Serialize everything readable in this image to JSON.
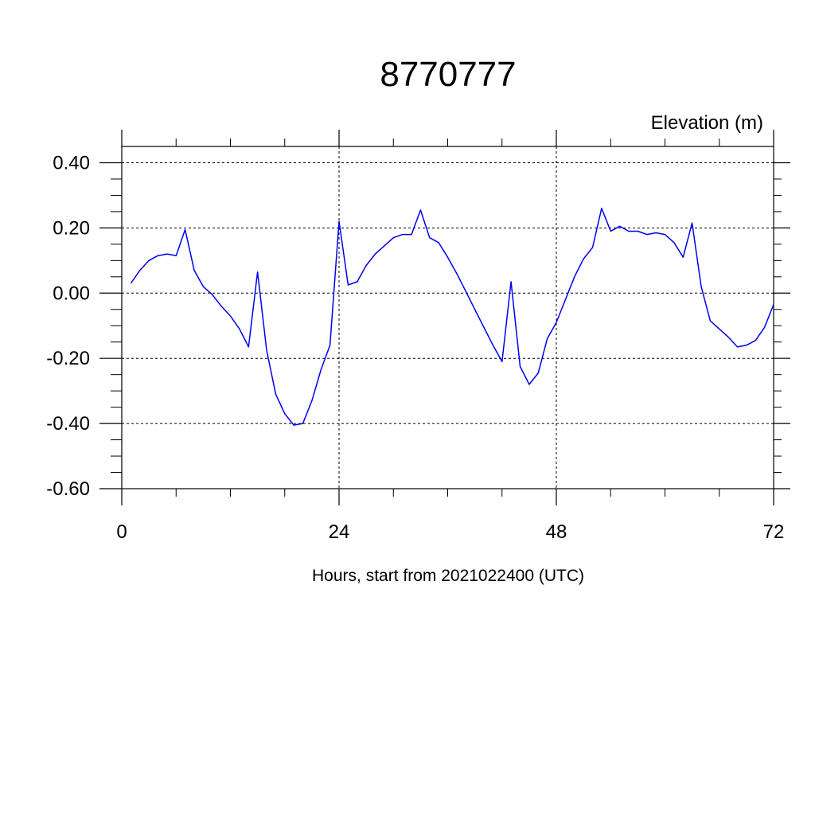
{
  "chart_data": {
    "type": "line",
    "title": "8770777",
    "ylabel": "Elevation (m)",
    "xlabel": "Hours, start from 2021022400 (UTC)",
    "xlim": [
      0,
      72
    ],
    "ylim": [
      -0.6,
      0.45
    ],
    "xticks": [
      0,
      24,
      48,
      72
    ],
    "xtick_labels": [
      "0",
      "24",
      "48",
      "72"
    ],
    "yticks": [
      -0.6,
      -0.4,
      -0.2,
      0.0,
      0.2,
      0.4
    ],
    "ytick_labels": [
      "-0.60",
      "-0.40",
      "-0.20",
      "0.00",
      "0.20",
      "0.40"
    ],
    "grid": true,
    "line_color": "#0000ee",
    "series": [
      {
        "x": [
          1,
          2,
          3,
          4,
          5,
          6,
          7,
          8,
          9,
          10,
          11,
          12,
          13,
          14,
          15,
          16,
          17,
          18,
          19,
          20,
          21,
          22,
          23,
          24,
          25,
          26,
          27,
          28,
          29,
          30,
          31,
          32,
          33,
          34,
          35,
          36,
          37,
          38,
          39,
          40,
          41,
          42,
          43,
          44,
          45,
          46,
          47,
          48,
          49,
          50,
          51,
          52,
          53,
          54,
          55,
          56,
          57,
          58,
          59,
          60,
          61,
          62,
          63,
          64,
          65,
          66,
          67,
          68,
          69,
          70,
          71,
          72
        ],
        "values": [
          0.03,
          0.07,
          0.1,
          0.115,
          0.12,
          0.115,
          0.195,
          0.07,
          0.02,
          -0.005,
          -0.04,
          -0.07,
          -0.11,
          -0.165,
          0.065,
          -0.175,
          -0.31,
          -0.37,
          -0.405,
          -0.4,
          -0.33,
          -0.235,
          -0.16,
          0.22,
          0.025,
          0.035,
          0.085,
          0.12,
          0.145,
          0.17,
          0.18,
          0.18,
          0.255,
          0.17,
          0.155,
          0.11,
          0.06,
          0.005,
          -0.05,
          -0.105,
          -0.16,
          -0.21,
          0.035,
          -0.225,
          -0.28,
          -0.245,
          -0.14,
          -0.09,
          -0.02,
          0.05,
          0.105,
          0.14,
          0.26,
          0.19,
          0.205,
          0.19,
          0.19,
          0.18,
          0.185,
          0.18,
          0.155,
          0.11,
          0.215,
          0.02,
          -0.085,
          -0.11,
          -0.135,
          -0.165,
          -0.16,
          -0.145,
          -0.105,
          -0.035
        ]
      }
    ]
  }
}
